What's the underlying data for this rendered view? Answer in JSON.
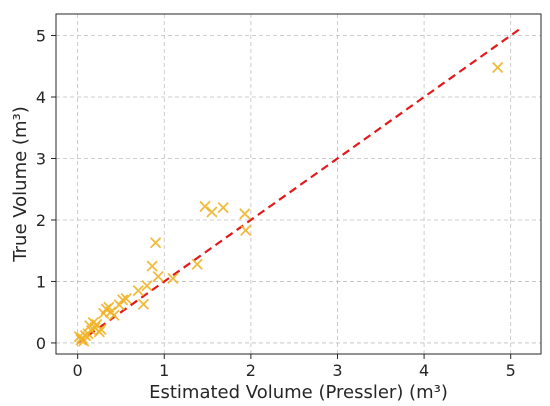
{
  "chart_data": {
    "type": "scatter",
    "title": "",
    "xlabel": "Estimated Volume (Pressler) (m³)",
    "ylabel": "True Volume (m³)",
    "xlim": [
      -0.25,
      5.35
    ],
    "ylim": [
      -0.18,
      5.35
    ],
    "xticks": [
      0,
      1,
      2,
      3,
      4,
      5
    ],
    "yticks": [
      0,
      1,
      2,
      3,
      4,
      5
    ],
    "grid": true,
    "legend": "none",
    "series": [
      {
        "marker": "x",
        "color": "#f0b429",
        "points": [
          [
            0.02,
            0.1
          ],
          [
            0.04,
            0.05
          ],
          [
            0.05,
            0.08
          ],
          [
            0.07,
            0.03
          ],
          [
            0.09,
            0.12
          ],
          [
            0.12,
            0.15
          ],
          [
            0.14,
            0.28
          ],
          [
            0.16,
            0.2
          ],
          [
            0.18,
            0.33
          ],
          [
            0.2,
            0.25
          ],
          [
            0.22,
            0.3
          ],
          [
            0.25,
            0.18
          ],
          [
            0.27,
            0.22
          ],
          [
            0.3,
            0.48
          ],
          [
            0.33,
            0.55
          ],
          [
            0.36,
            0.58
          ],
          [
            0.38,
            0.5
          ],
          [
            0.42,
            0.45
          ],
          [
            0.48,
            0.62
          ],
          [
            0.52,
            0.7
          ],
          [
            0.56,
            0.72
          ],
          [
            0.7,
            0.85
          ],
          [
            0.76,
            0.63
          ],
          [
            0.8,
            0.93
          ],
          [
            0.86,
            1.25
          ],
          [
            0.9,
            1.63
          ],
          [
            0.93,
            1.08
          ],
          [
            1.1,
            1.05
          ],
          [
            1.38,
            1.28
          ],
          [
            1.47,
            2.22
          ],
          [
            1.55,
            2.13
          ],
          [
            1.68,
            2.2
          ],
          [
            1.93,
            2.1
          ],
          [
            1.94,
            1.83
          ],
          [
            4.85,
            4.48
          ]
        ]
      }
    ],
    "reference_line": {
      "style": "dashed",
      "color": "#e31a1c",
      "points": [
        [
          0,
          0
        ],
        [
          5.1,
          5.1
        ]
      ]
    }
  }
}
